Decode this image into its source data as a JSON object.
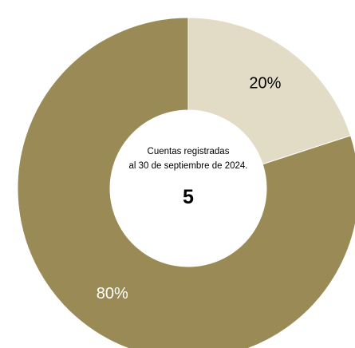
{
  "chart_data": {
    "type": "pie",
    "donut": true,
    "categories": [
      "",
      ""
    ],
    "values": [
      20,
      80
    ],
    "value_labels": [
      "20%",
      "80%"
    ],
    "colors": [
      "#e2dcc6",
      "#9a8b56"
    ],
    "label_colors": [
      "#000000",
      "#ffffff"
    ],
    "start_angle_deg": 0,
    "direction": "clockwise",
    "center_text": {
      "line1": "Cuentas registradas",
      "line2": "al 30 de  septiembre de 2024.",
      "value": "5"
    },
    "legend": "none"
  }
}
